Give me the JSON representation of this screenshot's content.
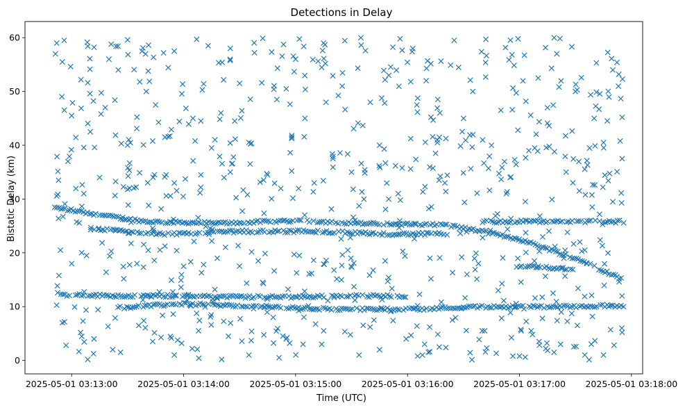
{
  "chart_data": {
    "type": "scatter",
    "title": "Detections in Delay",
    "xlabel": "Time (UTC)",
    "ylabel": "Bistatic Delay (km)",
    "marker": "x",
    "color": "#1f77b4",
    "grid": false,
    "xlim": [
      "2025-05-01 03:12:35",
      "2025-05-01 03:18:06"
    ],
    "ylim": [
      -2.5,
      63.0
    ],
    "x_ticks": [
      "2025-05-01 03:13:00",
      "2025-05-01 03:14:00",
      "2025-05-01 03:15:00",
      "2025-05-01 03:16:00",
      "2025-05-01 03:17:00",
      "2025-05-01 03:18:00"
    ],
    "y_ticks": [
      0,
      10,
      20,
      30,
      40,
      50,
      60
    ],
    "time_range": [
      "2025-05-01 03:12:51",
      "2025-05-01 03:17:56"
    ],
    "tracks": [
      {
        "points": [
          [
            "2025-05-01 03:12:51",
            28.4
          ],
          [
            "2025-05-01 03:13:20",
            26.8
          ],
          [
            "2025-05-01 03:13:40",
            25.8
          ],
          [
            "2025-05-01 03:14:20",
            25.5
          ],
          [
            "2025-05-01 03:15:00",
            26.0
          ],
          [
            "2025-05-01 03:15:40",
            25.4
          ],
          [
            "2025-05-01 03:16:20",
            25.2
          ],
          [
            "2025-05-01 03:16:40",
            24.0
          ],
          [
            "2025-05-01 03:17:00",
            22.5
          ],
          [
            "2025-05-01 03:17:30",
            19.0
          ],
          [
            "2025-05-01 03:17:56",
            15.0
          ]
        ]
      },
      {
        "points": [
          [
            "2025-05-01 03:12:51",
            12.2
          ],
          [
            "2025-05-01 03:13:30",
            12.0
          ],
          [
            "2025-05-01 03:14:00",
            12.0
          ],
          [
            "2025-05-01 03:14:30",
            11.8
          ],
          [
            "2025-05-01 03:15:00",
            11.8
          ],
          [
            "2025-05-01 03:15:30",
            12.0
          ],
          [
            "2025-05-01 03:16:00",
            12.0
          ]
        ]
      },
      {
        "points": [
          [
            "2025-05-01 03:13:25",
            9.8
          ],
          [
            "2025-05-01 03:14:00",
            10.5
          ],
          [
            "2025-05-01 03:14:40",
            10.0
          ],
          [
            "2025-05-01 03:15:20",
            9.5
          ],
          [
            "2025-05-01 03:16:00",
            9.5
          ],
          [
            "2025-05-01 03:16:40",
            10.0
          ],
          [
            "2025-05-01 03:17:20",
            10.0
          ],
          [
            "2025-05-01 03:17:56",
            10.2
          ]
        ]
      },
      {
        "points": [
          [
            "2025-05-01 03:13:10",
            24.5
          ],
          [
            "2025-05-01 03:13:50",
            23.5
          ],
          [
            "2025-05-01 03:14:30",
            24.0
          ],
          [
            "2025-05-01 03:15:10",
            24.0
          ],
          [
            "2025-05-01 03:15:50",
            23.5
          ],
          [
            "2025-05-01 03:16:20",
            23.5
          ]
        ]
      },
      {
        "points": [
          [
            "2025-05-01 03:13:30",
            31.8
          ],
          [
            "2025-05-01 03:13:35",
            32.0
          ]
        ]
      },
      {
        "points": [
          [
            "2025-05-01 03:17:00",
            17.5
          ],
          [
            "2025-05-01 03:17:30",
            17.0
          ]
        ]
      },
      {
        "points": [
          [
            "2025-05-01 03:16:40",
            25.8
          ],
          [
            "2025-05-01 03:17:56",
            25.8
          ]
        ]
      }
    ],
    "scatter_sample": [
      [
        "2025-05-01 03:12:52",
        59.0
      ],
      [
        "2025-05-01 03:12:56",
        59.5
      ],
      [
        "2025-05-01 03:13:12",
        58.2
      ],
      [
        "2025-05-01 03:13:20",
        56.0
      ],
      [
        "2025-05-01 03:13:30",
        59.6
      ],
      [
        "2025-05-01 03:13:55",
        57.5
      ],
      [
        "2025-05-01 03:14:07",
        59.7
      ],
      [
        "2025-05-01 03:14:25",
        58.0
      ],
      [
        "2025-05-01 03:14:38",
        57.2
      ],
      [
        "2025-05-01 03:15:00",
        56.0
      ],
      [
        "2025-05-01 03:15:15",
        59.0
      ],
      [
        "2025-05-01 03:15:35",
        60.0
      ],
      [
        "2025-05-01 03:15:56",
        59.8
      ],
      [
        "2025-05-01 03:16:25",
        59.5
      ],
      [
        "2025-05-01 03:16:42",
        59.7
      ],
      [
        "2025-05-01 03:17:20",
        57.0
      ],
      [
        "2025-05-01 03:12:55",
        55.5
      ],
      [
        "2025-05-01 03:13:05",
        52.2
      ],
      [
        "2025-05-01 03:13:25",
        54.0
      ],
      [
        "2025-05-01 03:13:40",
        50.0
      ],
      [
        "2025-05-01 03:14:10",
        50.3
      ],
      [
        "2025-05-01 03:14:30",
        51.5
      ],
      [
        "2025-05-01 03:14:55",
        50.5
      ],
      [
        "2025-05-01 03:15:25",
        51.0
      ],
      [
        "2025-05-01 03:15:50",
        53.0
      ],
      [
        "2025-05-01 03:16:10",
        52.0
      ],
      [
        "2025-05-01 03:16:35",
        50.0
      ],
      [
        "2025-05-01 03:17:10",
        52.5
      ],
      [
        "2025-05-01 03:17:30",
        50.0
      ],
      [
        "2025-05-01 03:17:50",
        54.0
      ],
      [
        "2025-05-01 03:13:00",
        45.5
      ],
      [
        "2025-05-01 03:13:18",
        47.0
      ],
      [
        "2025-05-01 03:13:45",
        47.5
      ],
      [
        "2025-05-01 03:14:05",
        45.0
      ],
      [
        "2025-05-01 03:14:20",
        46.0
      ],
      [
        "2025-05-01 03:14:50",
        48.5
      ],
      [
        "2025-05-01 03:15:05",
        45.0
      ],
      [
        "2025-05-01 03:15:40",
        48.0
      ],
      [
        "2025-05-01 03:16:05",
        47.5
      ],
      [
        "2025-05-01 03:16:30",
        45.0
      ],
      [
        "2025-05-01 03:16:50",
        46.5
      ],
      [
        "2025-05-01 03:17:15",
        47.0
      ],
      [
        "2025-05-01 03:17:40",
        45.0
      ],
      [
        "2025-05-01 03:17:55",
        45.2
      ],
      [
        "2025-05-01 03:12:58",
        37.0
      ],
      [
        "2025-05-01 03:13:10",
        42.5
      ],
      [
        "2025-05-01 03:13:30",
        40.0
      ],
      [
        "2025-05-01 03:13:50",
        41.5
      ],
      [
        "2025-05-01 03:14:15",
        39.5
      ],
      [
        "2025-05-01 03:14:35",
        40.5
      ],
      [
        "2025-05-01 03:14:58",
        41.5
      ],
      [
        "2025-05-01 03:15:20",
        37.5
      ],
      [
        "2025-05-01 03:15:45",
        40.0
      ],
      [
        "2025-05-01 03:16:15",
        38.5
      ],
      [
        "2025-05-01 03:16:45",
        40.0
      ],
      [
        "2025-05-01 03:17:05",
        39.0
      ],
      [
        "2025-05-01 03:17:45",
        40.5
      ],
      [
        "2025-05-01 03:17:55",
        37.5
      ],
      [
        "2025-05-01 03:12:53",
        33.5
      ],
      [
        "2025-05-01 03:13:15",
        34.0
      ],
      [
        "2025-05-01 03:13:55",
        33.0
      ],
      [
        "2025-05-01 03:14:25",
        35.0
      ],
      [
        "2025-05-01 03:14:45",
        34.5
      ],
      [
        "2025-05-01 03:15:10",
        33.0
      ],
      [
        "2025-05-01 03:15:30",
        35.0
      ],
      [
        "2025-05-01 03:15:55",
        31.0
      ],
      [
        "2025-05-01 03:16:20",
        33.0
      ],
      [
        "2025-05-01 03:16:55",
        34.0
      ],
      [
        "2025-05-01 03:17:25",
        35.0
      ],
      [
        "2025-05-01 03:17:50",
        29.5
      ],
      [
        "2025-05-01 03:12:54",
        20.5
      ],
      [
        "2025-05-01 03:13:08",
        19.5
      ],
      [
        "2025-05-01 03:13:35",
        18.0
      ],
      [
        "2025-05-01 03:14:00",
        17.5
      ],
      [
        "2025-05-01 03:14:18",
        19.0
      ],
      [
        "2025-05-01 03:14:40",
        18.5
      ],
      [
        "2025-05-01 03:15:02",
        19.5
      ],
      [
        "2025-05-01 03:15:28",
        20.5
      ],
      [
        "2025-05-01 03:15:48",
        18.5
      ],
      [
        "2025-05-01 03:16:12",
        19.0
      ],
      [
        "2025-05-01 03:16:38",
        18.0
      ],
      [
        "2025-05-01 03:17:08",
        18.5
      ],
      [
        "2025-05-01 03:17:35",
        20.5
      ],
      [
        "2025-05-01 03:12:55",
        7.0
      ],
      [
        "2025-05-01 03:12:57",
        2.8
      ],
      [
        "2025-05-01 03:13:12",
        4.0
      ],
      [
        "2025-05-01 03:13:22",
        2.0
      ],
      [
        "2025-05-01 03:13:36",
        6.5
      ],
      [
        "2025-05-01 03:13:55",
        1.0
      ],
      [
        "2025-05-01 03:14:08",
        5.5
      ],
      [
        "2025-05-01 03:14:24",
        4.5
      ],
      [
        "2025-05-01 03:14:35",
        1.0
      ],
      [
        "2025-05-01 03:14:55",
        4.0
      ],
      [
        "2025-05-01 03:15:04",
        3.0
      ],
      [
        "2025-05-01 03:15:14",
        3.0
      ],
      [
        "2025-05-01 03:15:34",
        1.0
      ],
      [
        "2025-05-01 03:15:45",
        2.0
      ],
      [
        "2025-05-01 03:16:08",
        1.0
      ],
      [
        "2025-05-01 03:16:17",
        2.5
      ],
      [
        "2025-05-01 03:16:40",
        5.5
      ],
      [
        "2025-05-01 03:17:00",
        0.8
      ],
      [
        "2025-05-01 03:17:22",
        3.0
      ],
      [
        "2025-05-01 03:17:35",
        1.0
      ],
      [
        "2025-05-01 03:17:45",
        1.0
      ],
      [
        "2025-05-01 03:17:55",
        5.2
      ],
      [
        "2025-05-01 03:16:24",
        7.5
      ],
      [
        "2025-05-01 03:15:42",
        7.5
      ],
      [
        "2025-05-01 03:14:48",
        8.0
      ]
    ]
  }
}
